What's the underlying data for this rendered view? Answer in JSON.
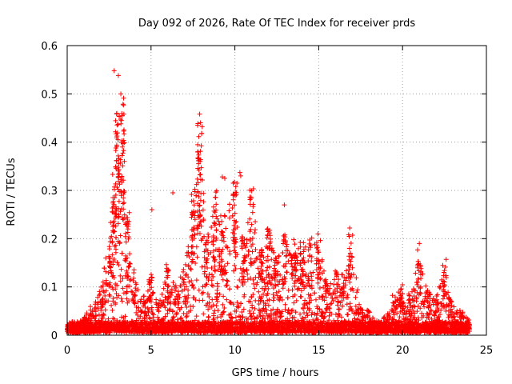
{
  "chart_data": {
    "type": "scatter",
    "title": "Day 092 of 2026, Rate Of TEC Index for receiver prds",
    "xlabel": "GPS time / hours",
    "ylabel": "ROTI / TECUs",
    "xlim": [
      0,
      25
    ],
    "ylim": [
      0,
      0.6
    ],
    "x_ticks": [
      "0",
      "5",
      "10",
      "15",
      "20",
      "25"
    ],
    "y_ticks": [
      "0",
      "0.1",
      "0.2",
      "0.3",
      "0.4",
      "0.5",
      "0.6"
    ],
    "grid": true,
    "marker": "+",
    "color": "#ff0000",
    "x_range_of_data": [
      0,
      24
    ],
    "baseline_roti": 0.02,
    "activity_profile": [
      {
        "x": 0.0,
        "y": 0.015
      },
      {
        "x": 0.5,
        "y": 0.02
      },
      {
        "x": 1.0,
        "y": 0.04
      },
      {
        "x": 1.5,
        "y": 0.06
      },
      {
        "x": 2.0,
        "y": 0.1
      },
      {
        "x": 2.5,
        "y": 0.2
      },
      {
        "x": 2.8,
        "y": 0.33
      },
      {
        "x": 3.0,
        "y": 0.44
      },
      {
        "x": 3.3,
        "y": 0.47
      },
      {
        "x": 3.6,
        "y": 0.25
      },
      {
        "x": 4.0,
        "y": 0.13
      },
      {
        "x": 4.5,
        "y": 0.08
      },
      {
        "x": 5.0,
        "y": 0.12
      },
      {
        "x": 5.5,
        "y": 0.07
      },
      {
        "x": 6.0,
        "y": 0.14
      },
      {
        "x": 6.5,
        "y": 0.1
      },
      {
        "x": 7.0,
        "y": 0.14
      },
      {
        "x": 7.5,
        "y": 0.28
      },
      {
        "x": 7.9,
        "y": 0.42
      },
      {
        "x": 8.3,
        "y": 0.2
      },
      {
        "x": 8.8,
        "y": 0.3
      },
      {
        "x": 9.3,
        "y": 0.24
      },
      {
        "x": 10.0,
        "y": 0.31
      },
      {
        "x": 10.5,
        "y": 0.2
      },
      {
        "x": 11.0,
        "y": 0.29
      },
      {
        "x": 11.5,
        "y": 0.17
      },
      {
        "x": 12.0,
        "y": 0.21
      },
      {
        "x": 12.5,
        "y": 0.17
      },
      {
        "x": 13.0,
        "y": 0.2
      },
      {
        "x": 13.5,
        "y": 0.19
      },
      {
        "x": 14.0,
        "y": 0.2
      },
      {
        "x": 14.5,
        "y": 0.2
      },
      {
        "x": 15.0,
        "y": 0.2
      },
      {
        "x": 15.5,
        "y": 0.1
      },
      {
        "x": 16.0,
        "y": 0.13
      },
      {
        "x": 16.5,
        "y": 0.14
      },
      {
        "x": 16.9,
        "y": 0.2
      },
      {
        "x": 17.5,
        "y": 0.06
      },
      {
        "x": 18.0,
        "y": 0.05
      },
      {
        "x": 18.5,
        "y": 0.03
      },
      {
        "x": 19.0,
        "y": 0.04
      },
      {
        "x": 19.5,
        "y": 0.08
      },
      {
        "x": 20.0,
        "y": 0.1
      },
      {
        "x": 20.5,
        "y": 0.08
      },
      {
        "x": 21.0,
        "y": 0.17
      },
      {
        "x": 21.5,
        "y": 0.09
      },
      {
        "x": 22.0,
        "y": 0.08
      },
      {
        "x": 22.5,
        "y": 0.14
      },
      {
        "x": 23.0,
        "y": 0.06
      },
      {
        "x": 23.5,
        "y": 0.05
      },
      {
        "x": 24.0,
        "y": 0.03
      }
    ],
    "outliers": [
      {
        "x": 2.8,
        "y": 0.548
      },
      {
        "x": 3.05,
        "y": 0.538
      },
      {
        "x": 3.2,
        "y": 0.5
      },
      {
        "x": 7.9,
        "y": 0.458
      },
      {
        "x": 7.95,
        "y": 0.44
      },
      {
        "x": 8.05,
        "y": 0.432
      },
      {
        "x": 10.3,
        "y": 0.337
      },
      {
        "x": 10.35,
        "y": 0.33
      },
      {
        "x": 9.25,
        "y": 0.328
      },
      {
        "x": 9.4,
        "y": 0.325
      },
      {
        "x": 9.9,
        "y": 0.315
      },
      {
        "x": 12.95,
        "y": 0.27
      },
      {
        "x": 6.3,
        "y": 0.295
      },
      {
        "x": 5.05,
        "y": 0.26
      },
      {
        "x": 16.85,
        "y": 0.222
      },
      {
        "x": 21.0,
        "y": 0.19
      },
      {
        "x": 22.6,
        "y": 0.157
      }
    ]
  }
}
